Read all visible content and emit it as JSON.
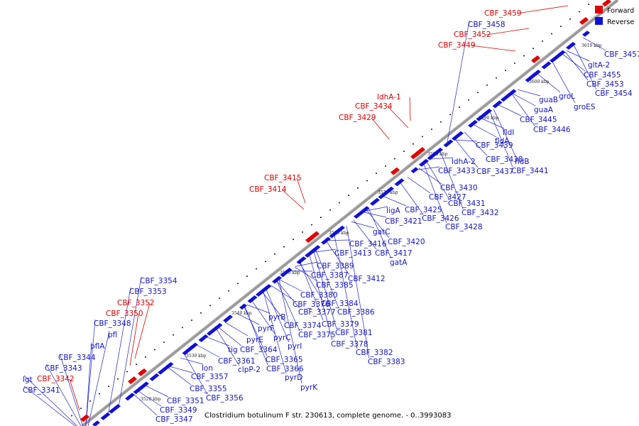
{
  "caption": "Clostridium botulinum F str. 230613, complete genome. - 0..3993083",
  "legend": {
    "forward_label": "Forward",
    "reverse_label": "Reverse",
    "forward_color": "#e00000",
    "reverse_color": "#1010d8"
  },
  "scale_ticks": [
    "3520 kbp",
    "3530 kbp",
    "3540 kbp",
    "3550 kbp",
    "3560 kbp",
    "3570 kbp",
    "3580 kbp",
    "3590 kbp",
    "3600 kbp",
    "3610 kbp"
  ],
  "forward_genes": [
    "CBF_3459",
    "CBF_3452",
    "CBF_3449",
    "ldhA-1",
    "CBF_3434",
    "CBF_3429",
    "CBF_3415",
    "CBF_3414",
    "CBF_3352",
    "CBF_3350",
    "CBF_3342"
  ],
  "reverse_genes": [
    "CBF_3458",
    "CBF_3457",
    "gltA-2",
    "CBF_3455",
    "CBF_3453",
    "CBF_3454",
    "groL",
    "groES",
    "guaB",
    "guaA",
    "CBF_3445",
    "CBF_3446",
    "fldI",
    "fldA",
    "CBF_3439",
    "CBF_3438",
    "fldB",
    "CBF_3441",
    "ldhA-2",
    "CBF_3437",
    "CBF_3433",
    "CBF_3430",
    "CBF_3427",
    "CBF_3431",
    "CBF_3432",
    "ligA",
    "CBF_3425",
    "CBF_3426",
    "CBF_3428",
    "CBF_3421",
    "gatC",
    "CBF_3420",
    "CBF_3416",
    "CBF_3413",
    "CBF_3417",
    "gatA",
    "CBF_3412",
    "CBF_3389",
    "CBF_3387",
    "CBF_3385",
    "CBF_3380",
    "CBF_3384",
    "CBF_3376",
    "CBF_3377",
    "CBF_3386",
    "pyrB",
    "pyrF",
    "CBF_3374",
    "CBF_3379",
    "pyrC",
    "CBF_3375",
    "CBF_3381",
    "pyrE",
    "pyrI",
    "CBF_3378",
    "CBF_3364",
    "CBF_3382",
    "CBF_3383",
    "tig",
    "CBF_3365",
    "CBF_3361",
    "clpP-2",
    "CBF_3366",
    "pyrD",
    "pyrK",
    "CBF_3354",
    "CBF_3353",
    "CBF_3348",
    "pfl",
    "pflA",
    "CBF_3344",
    "CBF_3343",
    "lgt",
    "CBF_3341",
    "lon",
    "CBF_3357",
    "CBF_3355",
    "CBF_3356",
    "CBF_3351",
    "CBF_3349",
    "CBF_3347"
  ]
}
